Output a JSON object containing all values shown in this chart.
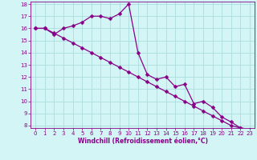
{
  "xlabel": "Windchill (Refroidissement éolien,°C)",
  "bg_color": "#d4f5f5",
  "grid_color": "#aadddd",
  "line_color": "#880088",
  "xlim": [
    -0.5,
    23.5
  ],
  "ylim": [
    7.8,
    18.2
  ],
  "xticks": [
    0,
    1,
    2,
    3,
    4,
    5,
    6,
    7,
    8,
    9,
    10,
    11,
    12,
    13,
    14,
    15,
    16,
    17,
    18,
    19,
    20,
    21,
    22,
    23
  ],
  "yticks": [
    8,
    9,
    10,
    11,
    12,
    13,
    14,
    15,
    16,
    17,
    18
  ],
  "line1_x": [
    0,
    1,
    2,
    3,
    4,
    5,
    6,
    7,
    8,
    9,
    10,
    11,
    12,
    13,
    14,
    15,
    16,
    17,
    18,
    19,
    20,
    21,
    22,
    23
  ],
  "line1_y": [
    16.0,
    16.0,
    15.6,
    15.2,
    14.8,
    14.4,
    14.0,
    13.6,
    13.2,
    12.8,
    12.4,
    12.0,
    11.6,
    11.2,
    10.8,
    10.4,
    10.0,
    9.6,
    9.2,
    8.8,
    8.4,
    8.0,
    7.8,
    7.7
  ],
  "line2_x": [
    0,
    1,
    2,
    3,
    4,
    5,
    6,
    7,
    8,
    9,
    10,
    11,
    12,
    13,
    14,
    15,
    16,
    17,
    18,
    19,
    20,
    21,
    22,
    23
  ],
  "line2_y": [
    16.0,
    16.0,
    15.5,
    16.0,
    16.2,
    16.5,
    17.0,
    17.0,
    16.8,
    17.2,
    18.0,
    14.0,
    12.2,
    11.8,
    12.0,
    11.2,
    11.4,
    9.8,
    10.0,
    9.5,
    8.7,
    8.3,
    7.8,
    7.7
  ],
  "tick_fontsize": 5,
  "xlabel_fontsize": 5.5,
  "marker_size": 2.5,
  "line_width": 0.9
}
